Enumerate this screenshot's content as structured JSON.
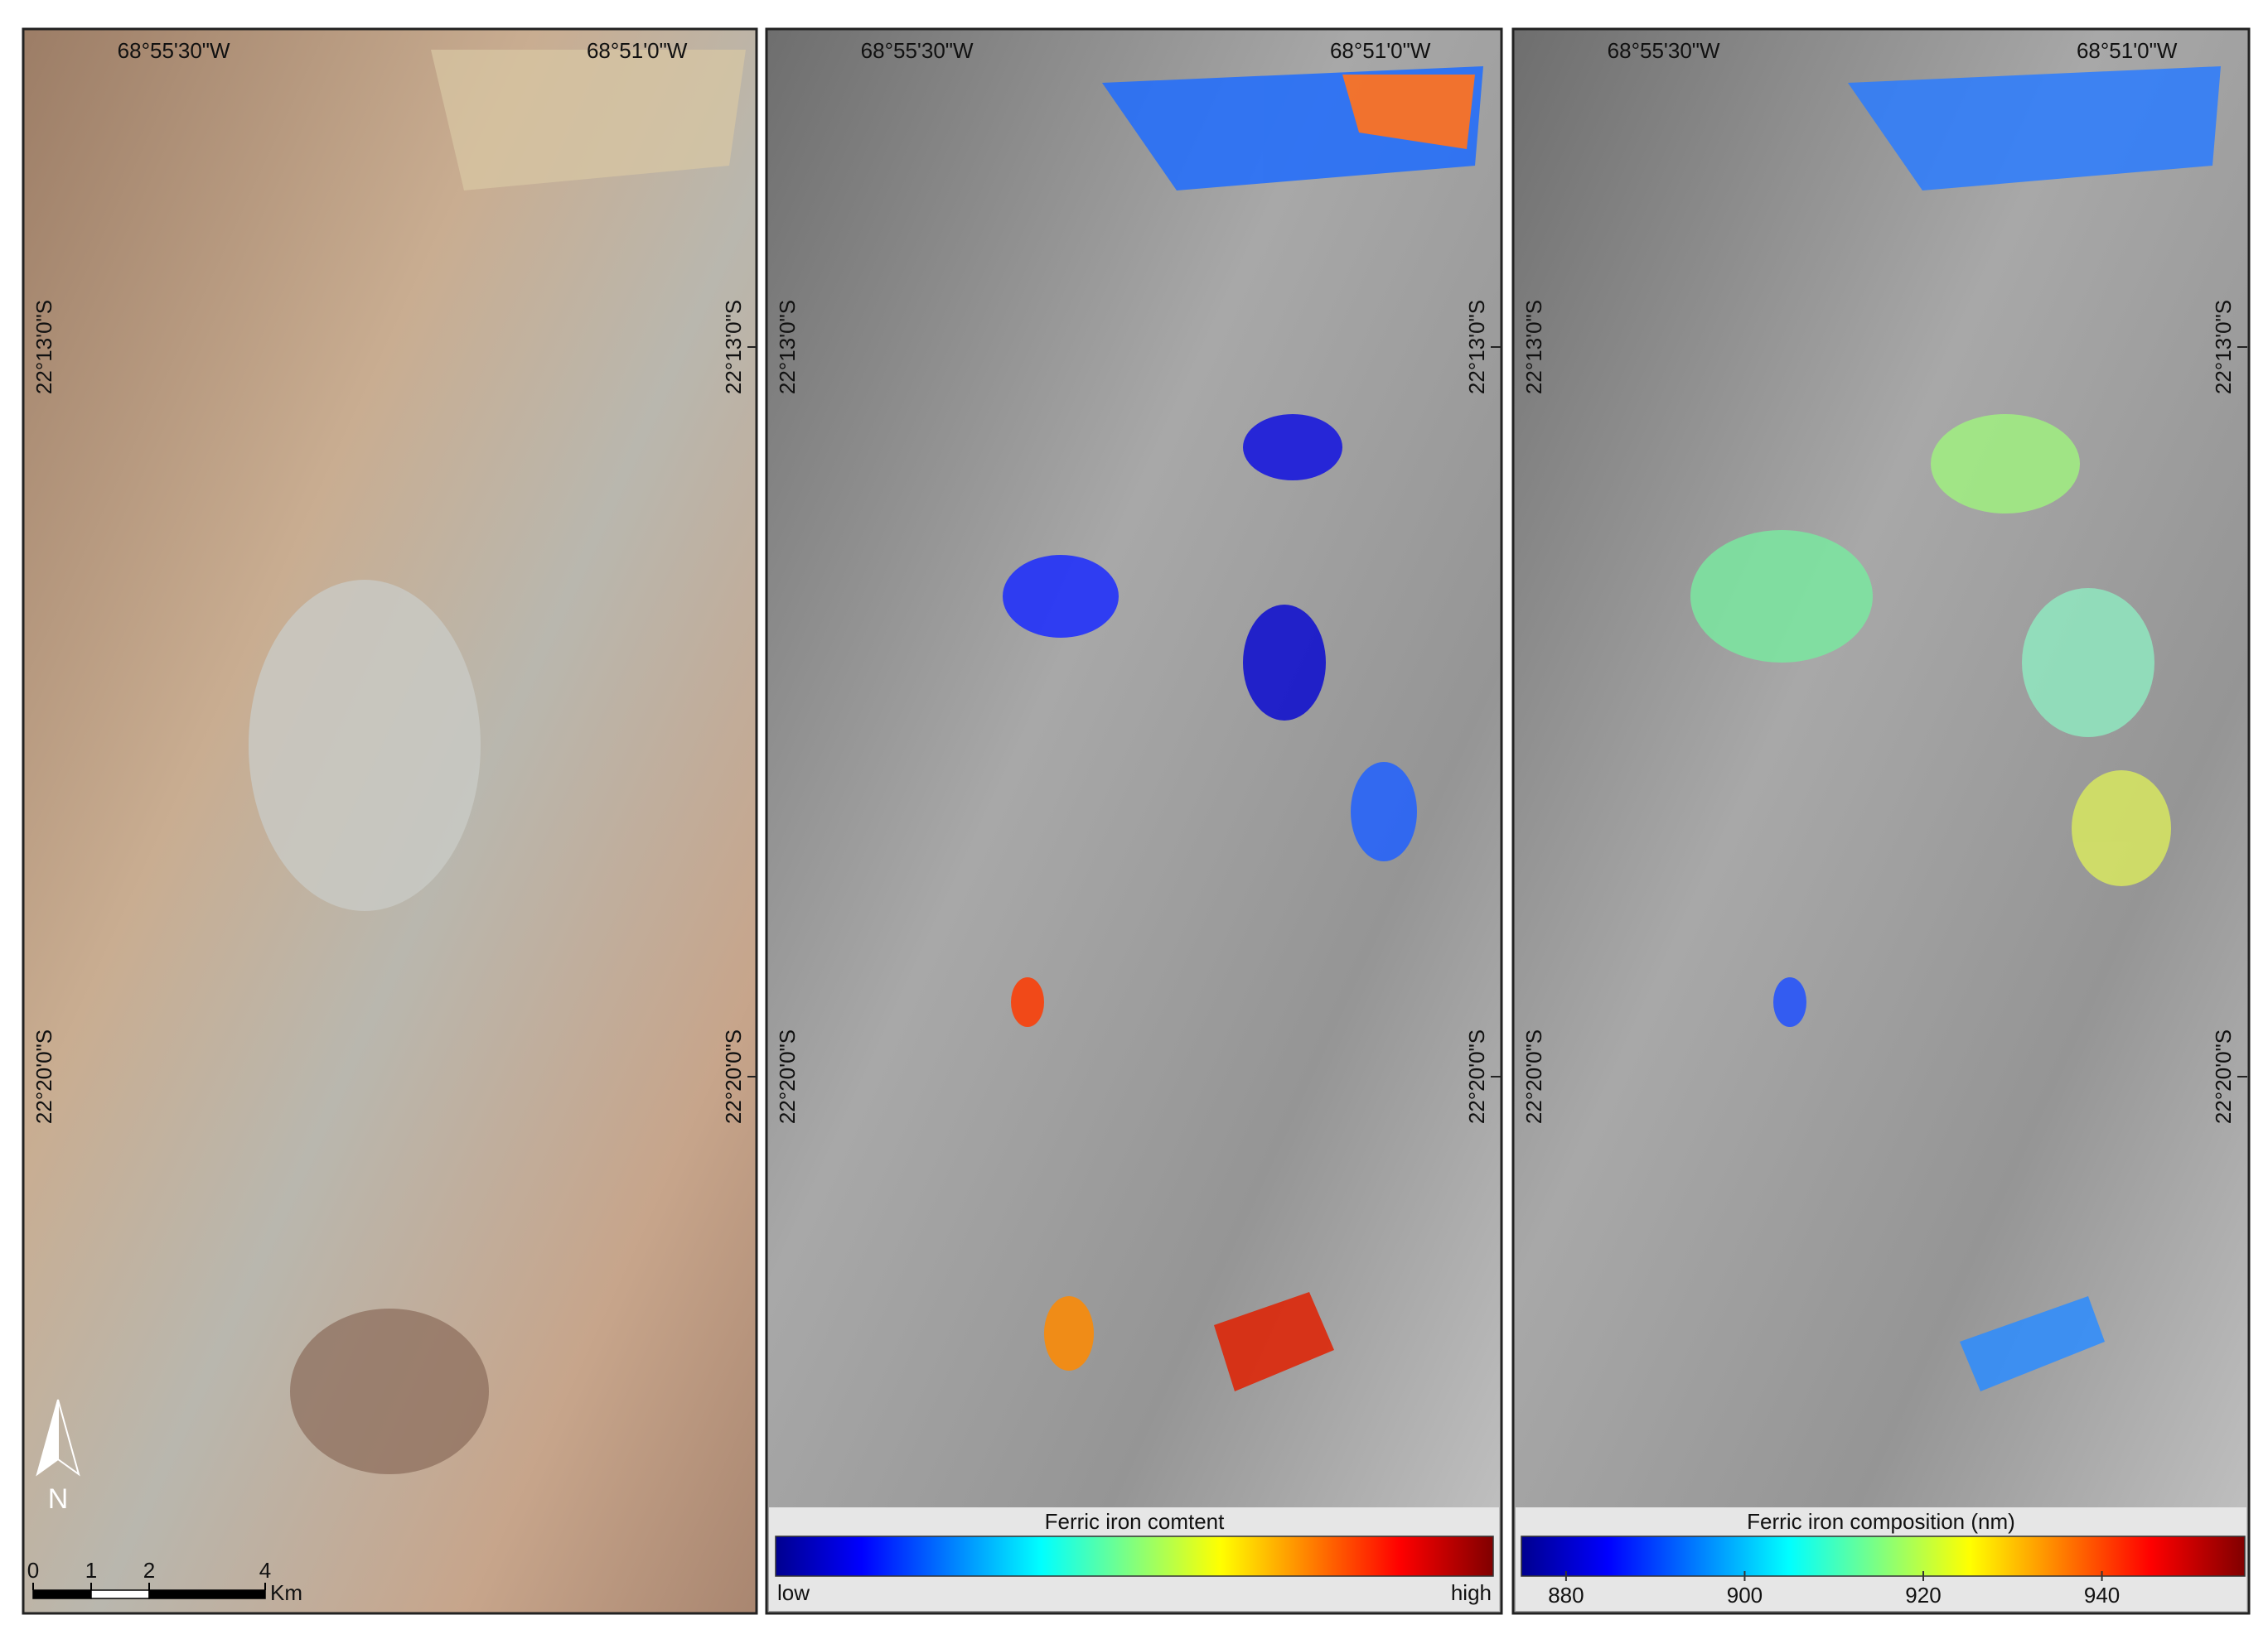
{
  "panels": [
    {
      "top_labels": [
        "68°55'30\"W",
        "68°51'0\"W"
      ],
      "left_labels": [
        "22°13'0\"S",
        "22°20'0\"S"
      ],
      "right_labels": [
        "22°13'0\"S",
        "22°20'0\"S"
      ]
    },
    {
      "top_labels": [
        "68°55'30\"W",
        "68°51'0\"W"
      ],
      "left_labels": [
        "22°13'0\"S",
        "22°20'0\"S"
      ],
      "right_labels": [
        "22°13'0\"S",
        "22°20'0\"S"
      ]
    },
    {
      "top_labels": [
        "68°55'30\"W",
        "68°51'0\"W"
      ],
      "left_labels": [
        "22°13'0\"S",
        "22°20'0\"S"
      ],
      "right_labels": [
        "22°13'0\"S",
        "22°20'0\"S"
      ]
    }
  ],
  "north_label": "N",
  "scale_bar": {
    "ticks": [
      0,
      1,
      2,
      4
    ],
    "unit": "Km"
  },
  "legend_content": {
    "title": "Ferric iron comtent",
    "low": "low",
    "high": "high"
  },
  "legend_composition": {
    "title": "Ferric iron composition (nm)",
    "lim": [
      875,
      956
    ],
    "ticks": [
      880,
      900,
      920,
      940
    ]
  }
}
